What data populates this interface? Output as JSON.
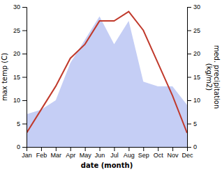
{
  "chart_data": {
    "type": "line",
    "categories": [
      "Jan",
      "Feb",
      "Mar",
      "Apr",
      "May",
      "Jun",
      "Jul",
      "Aug",
      "Sep",
      "Oct",
      "Nov",
      "Dec"
    ],
    "xlabel": "date (month)",
    "ylabel": "max temp (C)",
    "y2label": "med. precipitation\n(kg/m2)",
    "series": [
      {
        "type": "area",
        "axis": "y2",
        "color": "#c5cef5",
        "values": [
          7,
          8,
          10,
          18,
          23,
          28,
          22,
          27,
          14,
          13,
          13,
          9
        ]
      },
      {
        "type": "line",
        "color": "#c0392b",
        "values": [
          3,
          8,
          13,
          19,
          22,
          27,
          27,
          29,
          25,
          18,
          11,
          3
        ]
      }
    ],
    "ylim": [
      0,
      30
    ],
    "yticks": [
      0,
      5,
      10,
      15,
      20,
      25,
      30
    ],
    "y2lim": [
      0,
      30
    ],
    "y2ticks": [
      0,
      5,
      10,
      15,
      20,
      25,
      30
    ],
    "grid": false
  }
}
